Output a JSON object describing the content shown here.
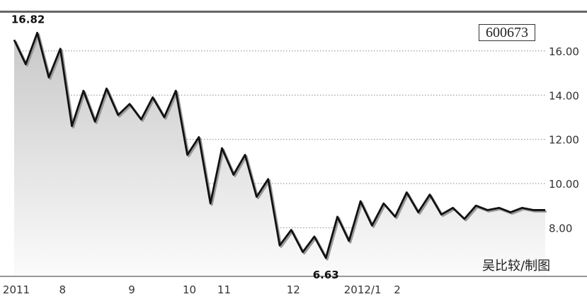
{
  "chart_data": {
    "type": "area",
    "title": "",
    "xlabel": "",
    "ylabel": "",
    "ticker": "600673",
    "credit": "吴比较/制图",
    "ylim": [
      5.8,
      17.6
    ],
    "y_ticks": [
      16.0,
      14.0,
      12.0,
      10.0,
      8.0
    ],
    "y_tick_labels": [
      "16.00",
      "14.00",
      "12.00",
      "10.00",
      "8.00"
    ],
    "grid": true,
    "x_tick_labels": [
      "2011",
      "8",
      "9",
      "10",
      "11",
      "12",
      "2012/1",
      "2"
    ],
    "annotations": [
      {
        "label": "16.82",
        "value": 16.82,
        "kind": "max"
      },
      {
        "label": "6.63",
        "value": 6.63,
        "kind": "min"
      }
    ],
    "series": [
      {
        "x": [
          0,
          1,
          2,
          3,
          4,
          5,
          6,
          7,
          8,
          9,
          10,
          11,
          12,
          13,
          14,
          15,
          16,
          17,
          18,
          19,
          20,
          21,
          22,
          23,
          24,
          25,
          26,
          27,
          28,
          29,
          30,
          31,
          32,
          33,
          34,
          35,
          36,
          37,
          38,
          39,
          40,
          41,
          42,
          43,
          44,
          45,
          46
        ],
        "values": [
          16.5,
          15.4,
          16.82,
          14.8,
          16.1,
          12.6,
          14.2,
          12.8,
          14.3,
          13.1,
          13.6,
          12.9,
          13.9,
          13.0,
          14.2,
          11.3,
          12.1,
          9.1,
          11.6,
          10.4,
          11.3,
          9.4,
          10.2,
          7.2,
          7.9,
          6.9,
          7.6,
          6.63,
          8.5,
          7.4,
          9.2,
          8.1,
          9.1,
          8.5,
          9.6,
          8.7,
          9.5,
          8.6,
          8.9,
          8.4,
          9.0,
          8.8,
          8.9,
          8.7,
          8.9,
          8.8,
          8.8
        ]
      }
    ]
  }
}
